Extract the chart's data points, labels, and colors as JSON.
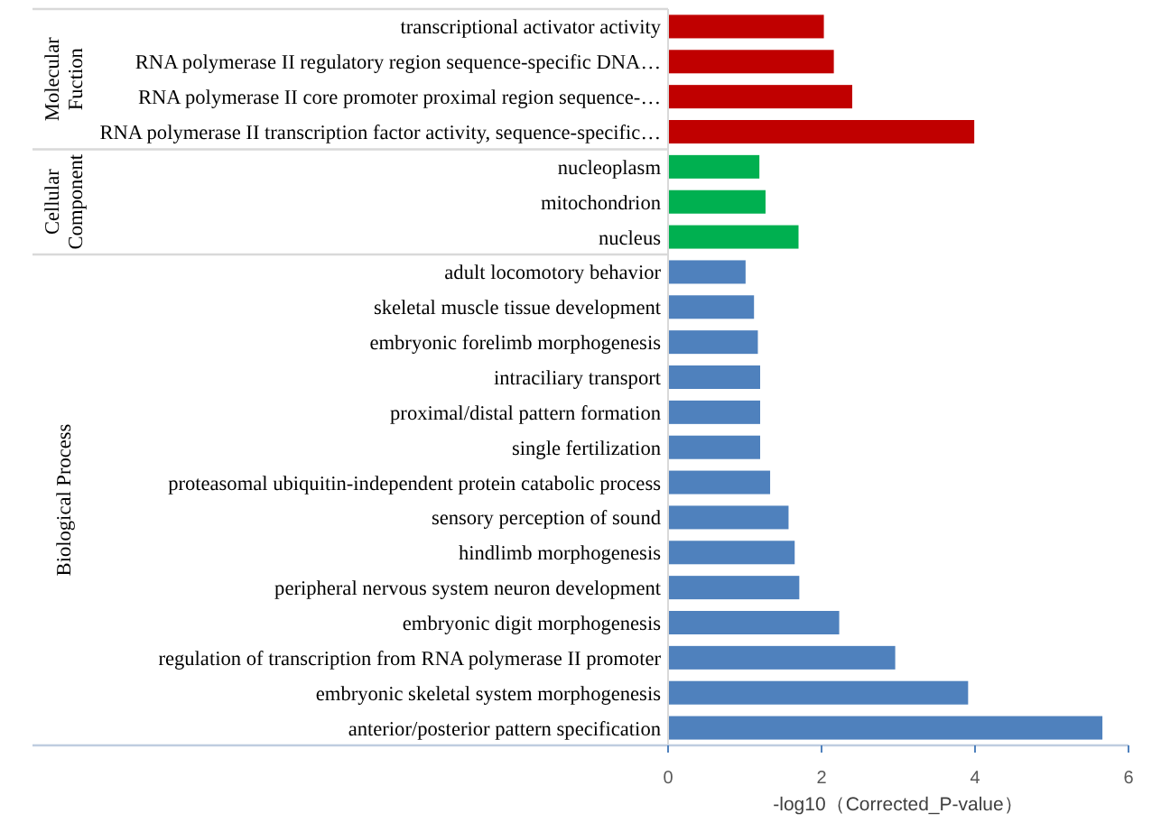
{
  "chart_data": {
    "type": "bar",
    "orientation": "horizontal",
    "xlabel": "-log10（Corrected_P-value）",
    "categories": [
      "transcriptional activator activity",
      "RNA polymerase II regulatory region sequence-specific DNA…",
      "RNA polymerase II core promoter proximal region sequence-…",
      "RNA polymerase II transcription factor activity, sequence-specific…",
      "nucleoplasm",
      "mitochondrion",
      "nucleus",
      "adult locomotory behavior",
      "skeletal muscle tissue development",
      "embryonic forelimb morphogenesis",
      "intraciliary transport",
      "proximal/distal pattern formation",
      "single fertilization",
      "proteasomal ubiquitin-independent protein catabolic process",
      "sensory perception of sound",
      "hindlimb morphogenesis",
      "peripheral nervous system neuron development",
      "embryonic digit morphogenesis",
      "regulation of transcription from RNA polymerase II promoter",
      "embryonic skeletal system morphogenesis",
      "anterior/posterior pattern specification"
    ],
    "values": [
      2.03,
      2.16,
      2.4,
      3.99,
      1.19,
      1.27,
      1.7,
      1.01,
      1.12,
      1.17,
      1.2,
      1.2,
      1.2,
      1.33,
      1.57,
      1.65,
      1.71,
      2.23,
      2.96,
      3.91,
      5.66
    ],
    "colors": [
      "#c00000",
      "#c00000",
      "#c00000",
      "#c00000",
      "#00b050",
      "#00b050",
      "#00b050",
      "#4f81bd",
      "#4f81bd",
      "#4f81bd",
      "#4f81bd",
      "#4f81bd",
      "#4f81bd",
      "#4f81bd",
      "#4f81bd",
      "#4f81bd",
      "#4f81bd",
      "#4f81bd",
      "#4f81bd",
      "#4f81bd",
      "#4f81bd"
    ],
    "annotations": [
      "Molecular Fuction",
      "Cellular Component",
      "Biological Process"
    ],
    "xlim": [
      0,
      6
    ],
    "xticks": [
      0,
      2,
      4,
      6
    ],
    "grid": false,
    "legend": false
  }
}
